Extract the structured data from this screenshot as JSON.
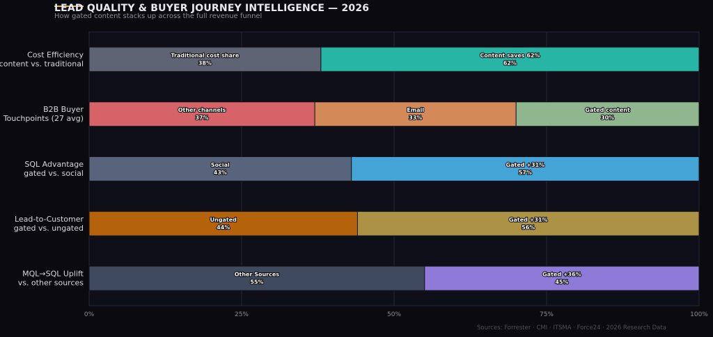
{
  "page": {
    "title": "LEAD QUALITY & BUYER JOURNEY INTELLIGENCE — 2026",
    "subtitle": "How gated content stacks up across the full revenue funnel",
    "source": "Sources: Forrester · CMI · ITSMA · Force24 · 2026 Research Data",
    "accent_color": "#d9b26a"
  },
  "chart_data": {
    "type": "bar",
    "orientation": "horizontal",
    "stacked": true,
    "title": "LEAD QUALITY & BUYER JOURNEY INTELLIGENCE — 2026",
    "subtitle": "How gated content stacks up across the full revenue funnel",
    "xlim": [
      0,
      100
    ],
    "x_ticks": [
      "0%",
      "25%",
      "50%",
      "75%",
      "100%"
    ],
    "x_tick_values": [
      0,
      25,
      50,
      75,
      100
    ],
    "grid": true,
    "rows": [
      {
        "label_line1": "Cost Efficiency",
        "label_line2": "content vs. traditional",
        "segments": [
          {
            "name": "Traditional cost share",
            "value": 38,
            "text": "38%",
            "color": "#5f6475"
          },
          {
            "name": "Content saves 62%",
            "value": 62,
            "text": "62%",
            "color": "#27b5a5"
          }
        ]
      },
      {
        "label_line1": "B2B Buyer",
        "label_line2": "Touchpoints (27 avg)",
        "segments": [
          {
            "name": "Other channels",
            "value": 37,
            "text": "37%",
            "color": "#d66367"
          },
          {
            "name": "Email",
            "value": 33,
            "text": "33%",
            "color": "#d48a58"
          },
          {
            "name": "Gated content",
            "value": 30,
            "text": "30%",
            "color": "#90b68f"
          }
        ]
      },
      {
        "label_line1": "SQL Advantage",
        "label_line2": "gated vs. social",
        "segments": [
          {
            "name": "Social",
            "value": 43,
            "text": "43%",
            "color": "#58647c"
          },
          {
            "name": "Gated +31%",
            "value": 57,
            "text": "57%",
            "color": "#44a4d6"
          }
        ]
      },
      {
        "label_line1": "Lead-to-Customer",
        "label_line2": "gated vs. ungated",
        "segments": [
          {
            "name": "Ungated",
            "value": 44,
            "text": "44%",
            "color": "#b5630a"
          },
          {
            "name": "Gated +31%",
            "value": 56,
            "text": "56%",
            "color": "#ab9244"
          }
        ]
      },
      {
        "label_line1": "MQL→SQL Uplift",
        "label_line2": "vs. other sources",
        "segments": [
          {
            "name": "Other Sources",
            "value": 55,
            "text": "55%",
            "color": "#3f4a5e"
          },
          {
            "name": "Gated +36%",
            "value": 45,
            "text": "45%",
            "color": "#8e7ad8"
          }
        ]
      }
    ]
  }
}
